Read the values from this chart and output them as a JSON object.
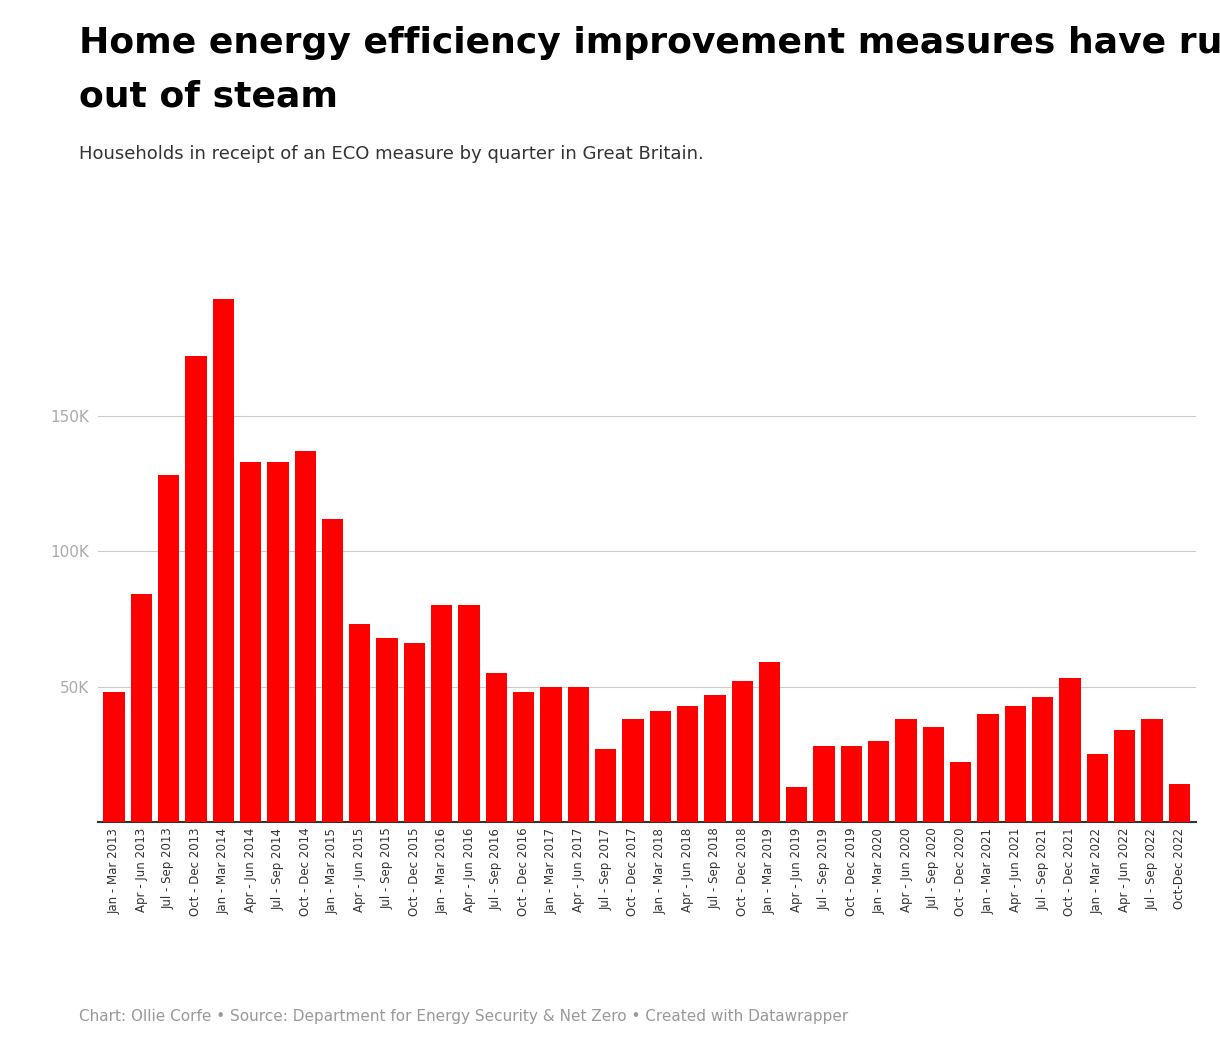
{
  "title_line1": "Home energy efficiency improvement measures have run",
  "title_line2": "out of steam",
  "subtitle": "Households in receipt of an ECO measure by quarter in Great Britain.",
  "footer": "Chart: Ollie Corfe • Source: Department for Energy Security & Net Zero • Created with Datawrapper",
  "bar_color": "#ff0000",
  "background_color": "#ffffff",
  "categories": [
    "Jan - Mar 2013",
    "Apr - Jun 2013",
    "Jul - Sep 2013",
    "Oct - Dec 2013",
    "Jan - Mar 2014",
    "Apr - Jun 2014",
    "Jul - Sep 2014",
    "Oct - Dec 2014",
    "Jan - Mar 2015",
    "Apr - Jun 2015",
    "Jul - Sep 2015",
    "Oct - Dec 2015",
    "Jan - Mar 2016",
    "Apr - Jun 2016",
    "Jul - Sep 2016",
    "Oct - Dec 2016",
    "Jan - Mar 2017",
    "Apr - Jun 2017",
    "Jul - Sep 2017",
    "Oct - Dec 2017",
    "Jan - Mar 2018",
    "Apr - Jun 2018",
    "Jul - Sep 2018",
    "Oct - Dec 2018",
    "Jan - Mar 2019",
    "Apr - Jun 2019",
    "Jul - Sep 2019",
    "Oct - Dec 2019",
    "Jan - Mar 2020",
    "Apr - Jun 2020",
    "Jul - Sep 2020",
    "Oct - Dec 2020",
    "Jan - Mar 2021",
    "Apr - Jun 2021",
    "Jul - Sep 2021",
    "Oct - Dec 2021",
    "Jan - Mar 2022",
    "Apr - Jun 2022",
    "Jul - Sep 2022",
    "Oct-Dec 2022"
  ],
  "values": [
    48000,
    84000,
    128000,
    172000,
    193000,
    133000,
    133000,
    137000,
    112000,
    73000,
    68000,
    66000,
    80000,
    80000,
    55000,
    48000,
    50000,
    50000,
    27000,
    38000,
    41000,
    43000,
    47000,
    52000,
    59000,
    13000,
    28000,
    28000,
    30000,
    38000,
    35000,
    22000,
    40000,
    43000,
    46000,
    53000,
    25000,
    34000,
    38000,
    14000
  ],
  "ylim": [
    0,
    210000
  ],
  "yticks": [
    0,
    50000,
    100000,
    150000
  ],
  "ytick_labels": [
    "",
    "50K",
    "100K",
    "150K"
  ],
  "grid_color": "#cccccc",
  "title_fontsize": 26,
  "subtitle_fontsize": 13,
  "xtick_fontsize": 8.5,
  "ytick_fontsize": 11,
  "footer_fontsize": 11,
  "footer_color": "#999999",
  "axis_text_color": "#aaaaaa",
  "xtick_color": "#333333",
  "spine_color": "#333333"
}
